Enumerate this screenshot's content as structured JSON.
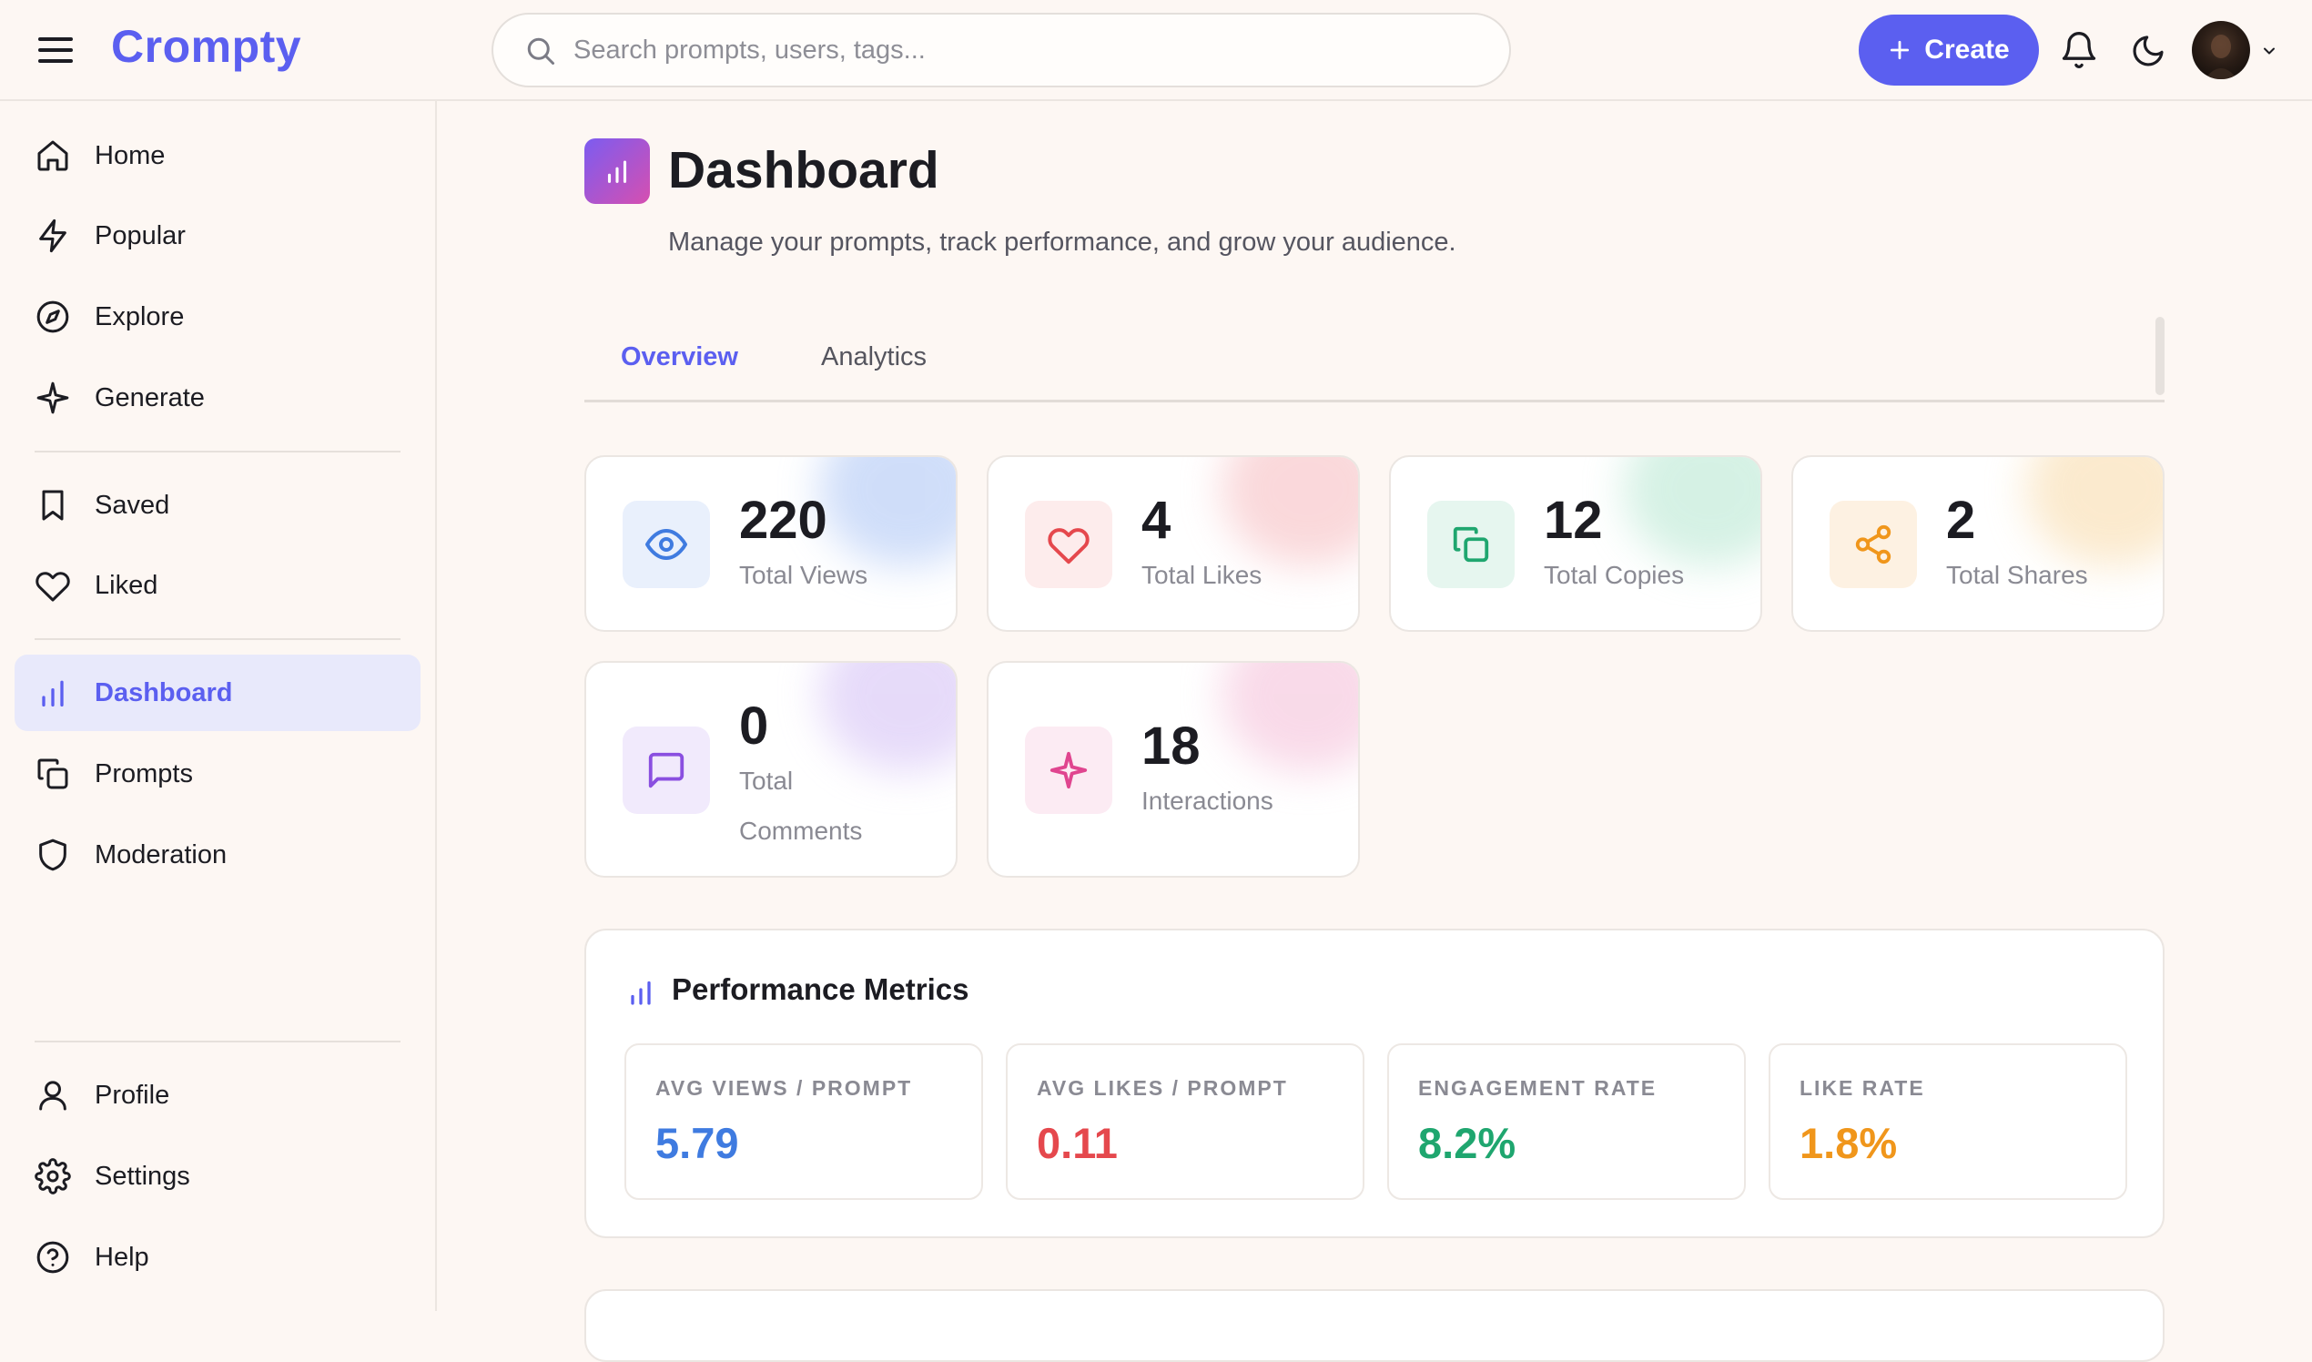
{
  "header": {
    "logo": "Crompty",
    "search_placeholder": "Search prompts, users, tags...",
    "create_label": "Create"
  },
  "sidebar": {
    "items": [
      {
        "label": "Home",
        "icon": "home-icon"
      },
      {
        "label": "Popular",
        "icon": "lightning-icon"
      },
      {
        "label": "Explore",
        "icon": "compass-icon"
      },
      {
        "label": "Generate",
        "icon": "sparkle-icon"
      },
      {
        "label": "Saved",
        "icon": "bookmark-icon"
      },
      {
        "label": "Liked",
        "icon": "heart-icon"
      },
      {
        "label": "Dashboard",
        "icon": "bar-chart-icon",
        "active": true
      },
      {
        "label": "Prompts",
        "icon": "copy-icon"
      },
      {
        "label": "Moderation",
        "icon": "shield-icon"
      }
    ],
    "footer_items": [
      {
        "label": "Profile",
        "icon": "user-icon"
      },
      {
        "label": "Settings",
        "icon": "gear-icon"
      },
      {
        "label": "Help",
        "icon": "help-circle-icon"
      }
    ]
  },
  "page": {
    "title": "Dashboard",
    "subtitle": "Manage your prompts, track performance, and grow your audience."
  },
  "tabs": [
    {
      "label": "Overview",
      "active": true
    },
    {
      "label": "Analytics",
      "active": false
    }
  ],
  "stats": [
    {
      "value": "220",
      "label": "Total Views",
      "icon": "eye-icon",
      "color": "#3f7be0",
      "bg": "#e9f0fc"
    },
    {
      "value": "4",
      "label": "Total Likes",
      "icon": "heart-icon",
      "color": "#e5484d",
      "bg": "#fdecec"
    },
    {
      "value": "12",
      "label": "Total Copies",
      "icon": "copy-icon",
      "color": "#1fa66f",
      "bg": "#e6f6ef"
    },
    {
      "value": "2",
      "label": "Total Shares",
      "icon": "share-icon",
      "color": "#f0961b",
      "bg": "#fdf1e2"
    },
    {
      "value": "0",
      "label": "Total Comments",
      "icon": "comment-icon",
      "color": "#8a4fe0",
      "bg": "#f1eafc"
    },
    {
      "value": "18",
      "label": "Interactions",
      "icon": "sparkle-icon",
      "color": "#e0458f",
      "bg": "#fcebf3"
    }
  ],
  "performance": {
    "title": "Performance Metrics",
    "metrics": [
      {
        "label": "AVG VIEWS / PROMPT",
        "value": "5.79",
        "color": "#3f7be0"
      },
      {
        "label": "AVG LIKES / PROMPT",
        "value": "0.11",
        "color": "#e5484d"
      },
      {
        "label": "ENGAGEMENT RATE",
        "value": "8.2%",
        "color": "#1fa66f"
      },
      {
        "label": "LIKE RATE",
        "value": "1.8%",
        "color": "#f0961b"
      }
    ]
  }
}
